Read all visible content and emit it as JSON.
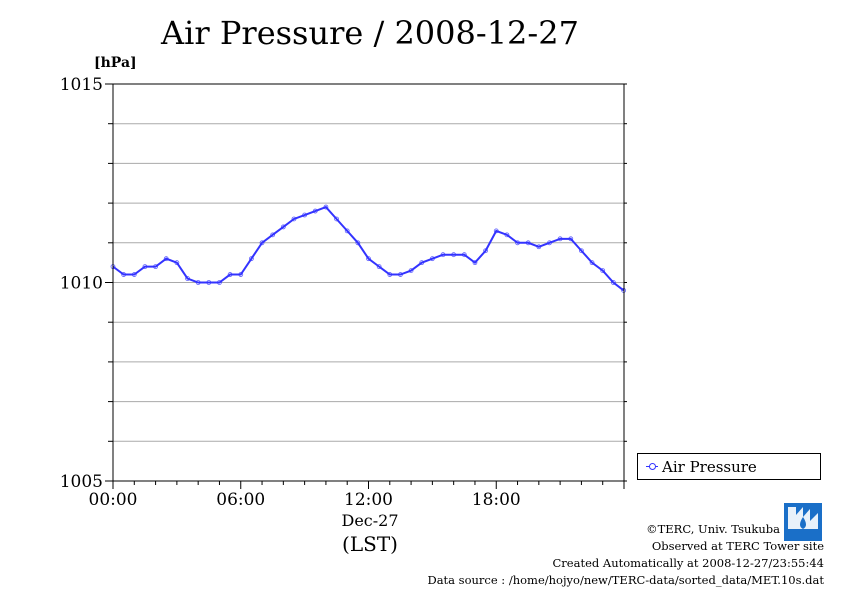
{
  "title": "Air Pressure / 2008-12-27",
  "chart_data": {
    "type": "line",
    "title": "Air Pressure / 2008-12-27",
    "ylabel": "[hPa]",
    "xlabel": "Dec-27",
    "x_timezone": "(LST)",
    "ylim": [
      1005,
      1015
    ],
    "y_ticks": [
      "1005",
      "1010",
      "1015"
    ],
    "y_minor_step": 1,
    "x_ticks": [
      "00:00",
      "06:00",
      "12:00",
      "18:00"
    ],
    "grid": true,
    "legend_position": "right-bottom",
    "series": [
      {
        "name": "Air Pressure",
        "color": "#3333ff",
        "marker": "circle",
        "x": [
          "00:00",
          "00:30",
          "01:00",
          "01:30",
          "02:00",
          "02:30",
          "03:00",
          "03:30",
          "04:00",
          "04:30",
          "05:00",
          "05:30",
          "06:00",
          "06:30",
          "07:00",
          "07:30",
          "08:00",
          "08:30",
          "09:00",
          "09:30",
          "10:00",
          "10:30",
          "11:00",
          "11:30",
          "12:00",
          "12:30",
          "13:00",
          "13:30",
          "14:00",
          "14:30",
          "15:00",
          "15:30",
          "16:00",
          "16:30",
          "17:00",
          "17:30",
          "18:00",
          "18:30",
          "19:00",
          "19:30",
          "20:00",
          "20:30",
          "21:00",
          "21:30",
          "22:00",
          "22:30",
          "23:00",
          "23:30"
        ],
        "values": [
          1010.4,
          1010.2,
          1010.2,
          1010.4,
          1010.4,
          1010.6,
          1010.5,
          1010.1,
          1010.0,
          1010.0,
          1010.0,
          1010.2,
          1010.2,
          1010.6,
          1011.0,
          1011.2,
          1011.4,
          1011.6,
          1011.7,
          1011.8,
          1011.9,
          1011.6,
          1011.3,
          1011.0,
          1010.6,
          1010.4,
          1010.2,
          1010.2,
          1010.3,
          1010.5,
          1010.6,
          1010.7,
          1010.7,
          1010.7,
          1010.5,
          1010.8,
          1011.3,
          1011.2,
          1011.0,
          1011.0,
          1010.9,
          1011.0,
          1011.1,
          1011.1,
          1010.8,
          1010.5,
          1010.3,
          1010.0
        ]
      }
    ],
    "end_point": {
      "x": "23:59",
      "value": 1009.8
    }
  },
  "credits": {
    "line1": "©TERC, Univ. Tsukuba",
    "line2": "Observed at TERC Tower site",
    "line3": "Created Automatically at 2008-12-27/23:55:44",
    "line4": "Data source : /home/hojyo/new/TERC-data/sorted_data/MET.10s.dat"
  },
  "logo_text": "TERC",
  "colors": {
    "series": "#3333ff",
    "grid": "#aaaaaa",
    "axis": "#000000",
    "logo": "#1a6fc8"
  }
}
